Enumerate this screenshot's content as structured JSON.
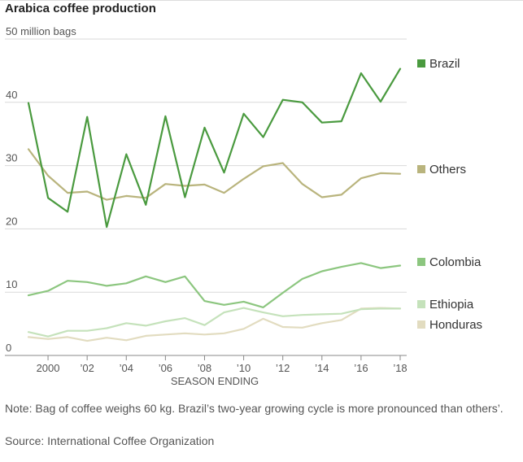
{
  "title": "Arabica coffee production",
  "note": "Note: Bag of coffee weighs 60 kg. Brazil’s two-year growing cycle is more pronounced than others’.",
  "source": "Source: International Coffee Organization",
  "chart_data": {
    "type": "line",
    "title": "Arabica coffee production",
    "xlabel": "SEASON ENDING",
    "ylabel": "50 million bags",
    "ylim": [
      0,
      50
    ],
    "xlim": [
      1999,
      2018
    ],
    "grid": true,
    "legend": "right, labels at line ends",
    "y_ticks": [
      {
        "value": 50,
        "label": "50 million bags"
      },
      {
        "value": 40,
        "label": "40"
      },
      {
        "value": 30,
        "label": "30"
      },
      {
        "value": 20,
        "label": "20"
      },
      {
        "value": 10,
        "label": "10"
      },
      {
        "value": 0,
        "label": "0"
      }
    ],
    "x_ticks": [
      {
        "value": 2000,
        "label": "2000"
      },
      {
        "value": 2002,
        "label": "’02"
      },
      {
        "value": 2004,
        "label": "’04"
      },
      {
        "value": 2006,
        "label": "’06"
      },
      {
        "value": 2008,
        "label": "’08"
      },
      {
        "value": 2010,
        "label": "’10"
      },
      {
        "value": 2012,
        "label": "’12"
      },
      {
        "value": 2014,
        "label": "’14"
      },
      {
        "value": 2016,
        "label": "’16"
      },
      {
        "value": 2018,
        "label": "’18"
      }
    ],
    "x": [
      1999,
      2000,
      2001,
      2002,
      2003,
      2004,
      2005,
      2006,
      2007,
      2008,
      2009,
      2010,
      2011,
      2012,
      2013,
      2014,
      2015,
      2016,
      2017,
      2018
    ],
    "series": [
      {
        "name": "Brazil",
        "color": "#4a9a3f",
        "values": [
          39.9,
          24.9,
          22.7,
          37.7,
          20.3,
          31.8,
          23.8,
          37.8,
          25.0,
          36.0,
          28.9,
          38.2,
          34.5,
          40.4,
          40.0,
          36.8,
          37.0,
          44.6,
          40.1,
          45.3
        ]
      },
      {
        "name": "Others",
        "color": "#b9b47d",
        "values": [
          32.6,
          28.4,
          25.7,
          25.9,
          24.6,
          25.2,
          24.9,
          27.1,
          26.8,
          27.0,
          25.7,
          27.9,
          29.9,
          30.4,
          27.1,
          25.0,
          25.4,
          28.0,
          28.8,
          28.7
        ]
      },
      {
        "name": "Colombia",
        "color": "#8cc67f",
        "values": [
          9.5,
          10.2,
          11.8,
          11.6,
          11.0,
          11.4,
          12.5,
          11.6,
          12.5,
          8.6,
          8.0,
          8.5,
          7.6,
          9.9,
          12.1,
          13.3,
          14.0,
          14.6,
          13.8,
          14.2
        ]
      },
      {
        "name": "Ethiopia",
        "color": "#c5e2bb",
        "values": [
          3.7,
          3.0,
          3.9,
          3.9,
          4.3,
          5.1,
          4.7,
          5.4,
          5.9,
          4.8,
          6.8,
          7.5,
          6.8,
          6.2,
          6.4,
          6.5,
          6.6,
          7.3,
          7.4,
          7.4
        ]
      },
      {
        "name": "Honduras",
        "color": "#e2dcc0",
        "values": [
          2.9,
          2.6,
          2.9,
          2.3,
          2.8,
          2.4,
          3.1,
          3.3,
          3.5,
          3.3,
          3.5,
          4.2,
          5.8,
          4.5,
          4.4,
          5.1,
          5.6,
          7.4,
          7.5,
          7.4
        ]
      }
    ]
  }
}
